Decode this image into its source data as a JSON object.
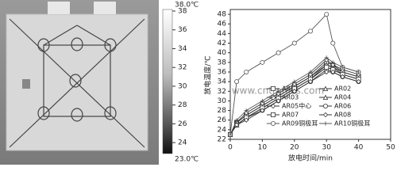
{
  "thermal_image": {
    "colorbar": {
      "max_label": "38.0℃",
      "min_label": "23.0℃",
      "range": [
        23,
        38
      ],
      "ticks": [
        38,
        36,
        34,
        32,
        30,
        28,
        26,
        24
      ]
    }
  },
  "chart_data": {
    "type": "line",
    "ylabel": "放电温度/℃",
    "xlabel": "放电时间/min",
    "watermark": "www.cntronics.com",
    "x": [
      0,
      2,
      5,
      10,
      15,
      20,
      25,
      30,
      32,
      35,
      40
    ],
    "xlim": [
      0,
      50
    ],
    "xticks": [
      0,
      10,
      20,
      30,
      40,
      50
    ],
    "ylim": [
      22,
      49
    ],
    "yticks": [
      22,
      24,
      26,
      28,
      30,
      32,
      34,
      36,
      38,
      40,
      42,
      44,
      46,
      48
    ],
    "series": [
      {
        "name": "AR01",
        "color": "#333",
        "marker": "square",
        "values": [
          23,
          25.5,
          27,
          29,
          31,
          33,
          35,
          37.5,
          37,
          36,
          35
        ]
      },
      {
        "name": "AR02",
        "color": "#333",
        "marker": "triangle",
        "values": [
          23,
          25,
          26.5,
          28.5,
          30.5,
          32.5,
          34.5,
          37,
          36.5,
          35.5,
          34.5
        ]
      },
      {
        "name": "AR03",
        "color": "#333",
        "marker": "circle",
        "values": [
          23,
          25.5,
          27,
          29,
          31,
          33,
          35,
          38,
          37.5,
          36,
          35
        ]
      },
      {
        "name": "AR04",
        "color": "#333",
        "marker": "triangle",
        "values": [
          23,
          25,
          26.5,
          28.5,
          30.5,
          32.5,
          34.5,
          37.5,
          37,
          35.5,
          34.5
        ]
      },
      {
        "name": "AR05中心",
        "color": "#333",
        "marker": "diamond",
        "values": [
          23,
          25.5,
          27.5,
          29.5,
          31.5,
          33.5,
          35.5,
          38.5,
          37.5,
          36.5,
          35.5
        ]
      },
      {
        "name": "AR06",
        "color": "#333",
        "marker": "circle",
        "values": [
          23,
          25,
          26.5,
          28,
          30,
          32,
          34,
          36.5,
          36,
          35,
          34
        ]
      },
      {
        "name": "AR07",
        "color": "#333",
        "marker": "square",
        "values": [
          23,
          25,
          26.5,
          28.5,
          30.5,
          32.5,
          34.5,
          37,
          36.5,
          35.5,
          34.5
        ]
      },
      {
        "name": "AR08",
        "color": "#333",
        "marker": "diamond",
        "values": [
          23,
          25,
          26,
          28,
          30,
          32,
          34,
          36,
          36,
          35,
          34
        ]
      },
      {
        "name": "AR09铜极耳",
        "color": "#555",
        "marker": "circle",
        "values": [
          23,
          34,
          36,
          38,
          40,
          42,
          44.5,
          48,
          42,
          37,
          36
        ]
      },
      {
        "name": "AR10铜极耳",
        "color": "#555",
        "marker": "plus",
        "values": [
          23,
          26,
          28,
          30,
          32,
          34,
          36,
          39,
          38,
          37,
          36
        ]
      }
    ]
  }
}
